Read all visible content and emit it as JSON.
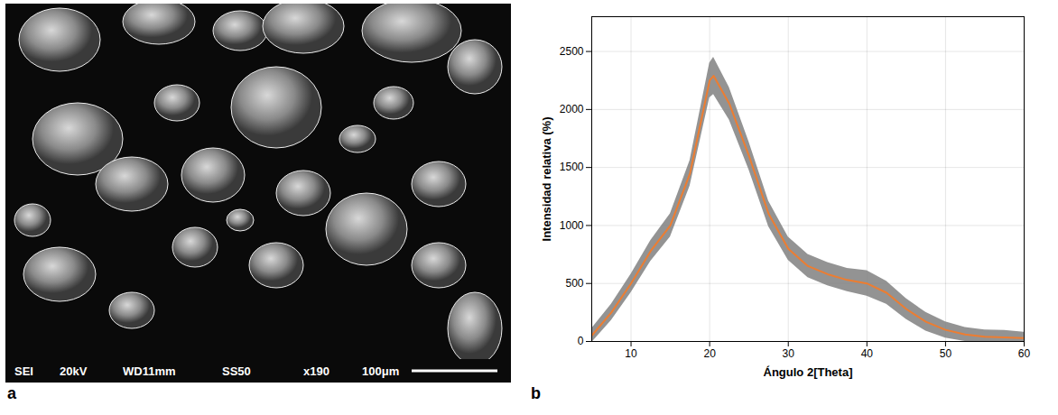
{
  "image": {
    "panel": "a",
    "info": [
      "SEI",
      "20kV",
      "WD11mm",
      "SS50",
      "x190"
    ],
    "scale_bar": "100μm"
  },
  "chart_data": {
    "type": "line",
    "panel": "b",
    "xlabel": "Ángulo 2[Theta]",
    "ylabel": "Intensidad relativa (%)",
    "x": [
      5,
      7.5,
      10,
      12.5,
      15,
      17.5,
      20,
      20.5,
      22.5,
      25,
      27.5,
      30,
      32.5,
      35,
      37.5,
      40,
      42.5,
      45,
      47.5,
      50,
      52.5,
      55,
      57.5,
      60
    ],
    "series": [
      {
        "type": "band",
        "color": "#808080",
        "values": [
          50,
          250,
          500,
          780,
          1000,
          1450,
          2250,
          2290,
          2050,
          1600,
          1100,
          800,
          650,
          580,
          530,
          500,
          420,
          280,
          170,
          100,
          60,
          40,
          35,
          30
        ],
        "noise": [
          60,
          70,
          80,
          90,
          100,
          110,
          150,
          160,
          140,
          120,
          110,
          100,
          100,
          100,
          100,
          110,
          100,
          90,
          80,
          70,
          60,
          60,
          60,
          50
        ]
      },
      {
        "type": "line",
        "color": "#ed7d31",
        "values": [
          50,
          250,
          500,
          780,
          1000,
          1450,
          2250,
          2290,
          2050,
          1600,
          1100,
          800,
          650,
          580,
          530,
          500,
          420,
          280,
          170,
          100,
          60,
          40,
          35,
          30
        ]
      }
    ],
    "xlim": [
      5,
      60
    ],
    "xticks": [
      10,
      20,
      30,
      40,
      50,
      60
    ],
    "ylim": [
      0,
      2800
    ],
    "yticks": [
      0,
      500,
      1000,
      1500,
      2000,
      2500
    ],
    "grid": true
  }
}
